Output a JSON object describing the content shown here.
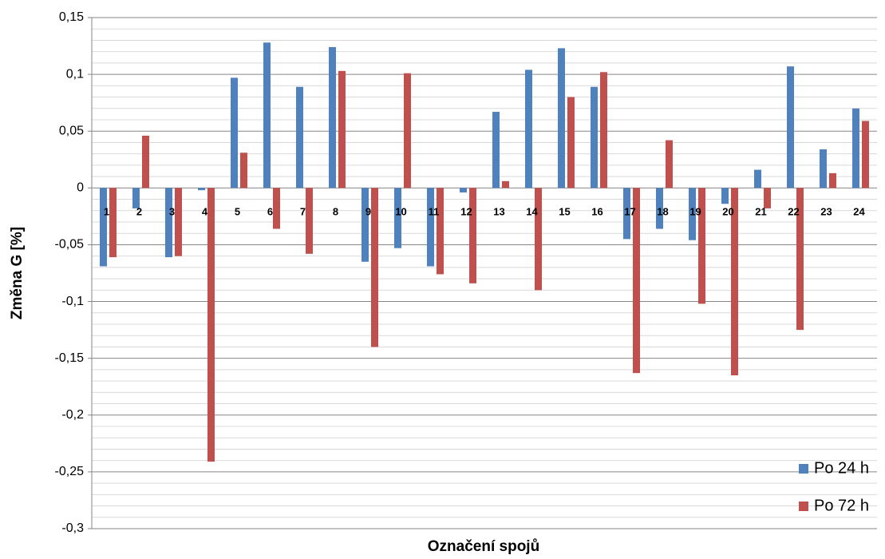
{
  "chart_data": {
    "type": "bar",
    "x_label": "Označení spojů",
    "y_label": "Změna G [%]",
    "categories": [
      "1",
      "2",
      "3",
      "4",
      "5",
      "6",
      "7",
      "8",
      "9",
      "10",
      "11",
      "12",
      "13",
      "14",
      "15",
      "16",
      "17",
      "18",
      "19",
      "20",
      "21",
      "22",
      "23",
      "24"
    ],
    "series": [
      {
        "name": "Po 24 h",
        "color": "#4f81bd",
        "values": [
          -0.069,
          -0.018,
          -0.061,
          -0.002,
          0.097,
          0.128,
          0.089,
          0.124,
          -0.065,
          -0.053,
          -0.069,
          -0.004,
          0.067,
          0.104,
          0.123,
          0.089,
          -0.045,
          -0.036,
          -0.046,
          -0.014,
          0.016,
          0.107,
          0.034,
          0.07
        ]
      },
      {
        "name": "Po 72 h",
        "color": "#c0504d",
        "values": [
          -0.061,
          0.046,
          -0.06,
          -0.241,
          0.031,
          -0.036,
          -0.058,
          0.103,
          -0.14,
          0.101,
          -0.076,
          -0.084,
          0.006,
          -0.09,
          0.08,
          0.102,
          -0.163,
          0.042,
          -0.102,
          -0.165,
          -0.018,
          -0.125,
          0.013,
          0.059
        ]
      }
    ],
    "ylim": [
      -0.3,
      0.15
    ],
    "yticks": [
      {
        "value": -0.3,
        "label": "-0,3"
      },
      {
        "value": -0.25,
        "label": "-0,25"
      },
      {
        "value": -0.2,
        "label": "-0,2"
      },
      {
        "value": -0.15,
        "label": "-0,15"
      },
      {
        "value": -0.1,
        "label": "-0,1"
      },
      {
        "value": -0.05,
        "label": "-0,05"
      },
      0,
      {
        "value": 0.05,
        "label": "0,05"
      },
      {
        "value": 0.1,
        "label": "0,1"
      },
      {
        "value": 0.15,
        "label": "0,15"
      }
    ],
    "minor_yticks": [
      -0.29,
      -0.28,
      -0.27,
      -0.26,
      -0.24,
      -0.23,
      -0.22,
      -0.21,
      -0.19,
      -0.18,
      -0.17,
      -0.16,
      -0.14,
      -0.13,
      -0.12,
      -0.11,
      -0.09,
      -0.08,
      -0.07,
      -0.06,
      -0.04,
      -0.03,
      -0.02,
      -0.01,
      0.01,
      0.02,
      0.03,
      0.04,
      0.06,
      0.07,
      0.08,
      0.09,
      0.11,
      0.12,
      0.13,
      0.14
    ],
    "grid": true,
    "legend": "bottom-right"
  }
}
